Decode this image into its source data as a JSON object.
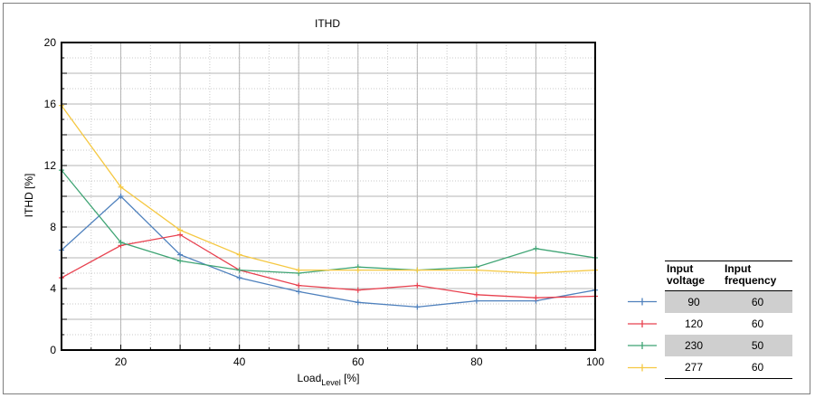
{
  "chart_data": {
    "type": "line",
    "title": "ITHD",
    "ylabel": "ITHD [%]",
    "xlabel_main": "Load",
    "xlabel_sub": "Level",
    "xlabel_unit": " [%]",
    "xlim": [
      10,
      100
    ],
    "ylim": [
      0,
      20
    ],
    "xticks": [
      20,
      40,
      60,
      80,
      100
    ],
    "yticks": [
      0,
      4,
      8,
      12,
      16,
      20
    ],
    "grid": true,
    "x": [
      10,
      20,
      30,
      40,
      50,
      60,
      70,
      80,
      90,
      100
    ],
    "series": [
      {
        "color": "#4f81bd",
        "values": [
          6.5,
          10.0,
          6.2,
          4.7,
          3.8,
          3.1,
          2.8,
          3.2,
          3.2,
          3.9
        ]
      },
      {
        "color": "#e8414f",
        "values": [
          4.7,
          6.8,
          7.5,
          5.2,
          4.2,
          3.9,
          4.2,
          3.6,
          3.4,
          3.5
        ]
      },
      {
        "color": "#3fa474",
        "values": [
          11.7,
          7.0,
          5.8,
          5.2,
          5.0,
          5.4,
          5.2,
          5.4,
          6.6,
          6.0
        ]
      },
      {
        "color": "#f5c842",
        "values": [
          15.9,
          10.6,
          7.8,
          6.2,
          5.2,
          5.2,
          5.2,
          5.2,
          5.0,
          5.2
        ]
      }
    ],
    "legend": {
      "headers": [
        "Input voltage",
        "Input frequency"
      ],
      "rows": [
        {
          "voltage": "90",
          "frequency": "60"
        },
        {
          "voltage": "120",
          "frequency": "60"
        },
        {
          "voltage": "230",
          "frequency": "50"
        },
        {
          "voltage": "277",
          "frequency": "60"
        }
      ]
    }
  }
}
